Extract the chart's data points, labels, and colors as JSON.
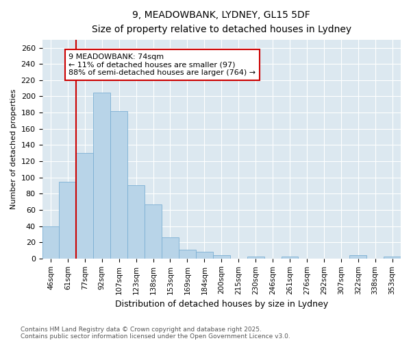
{
  "title1": "9, MEADOWBANK, LYDNEY, GL15 5DF",
  "title2": "Size of property relative to detached houses in Lydney",
  "xlabel": "Distribution of detached houses by size in Lydney",
  "ylabel": "Number of detached properties",
  "categories": [
    "46sqm",
    "61sqm",
    "77sqm",
    "92sqm",
    "107sqm",
    "123sqm",
    "138sqm",
    "153sqm",
    "169sqm",
    "184sqm",
    "200sqm",
    "215sqm",
    "230sqm",
    "246sqm",
    "261sqm",
    "276sqm",
    "292sqm",
    "307sqm",
    "322sqm",
    "338sqm",
    "353sqm"
  ],
  "values": [
    40,
    95,
    130,
    205,
    182,
    90,
    67,
    26,
    11,
    8,
    4,
    0,
    2,
    0,
    2,
    0,
    0,
    0,
    4,
    0,
    2
  ],
  "bar_color": "#b8d4e8",
  "bar_edge_color": "#7bafd4",
  "bg_color": "#dce8f0",
  "grid_color": "#ffffff",
  "annotation_text": "9 MEADOWBANK: 74sqm\n← 11% of detached houses are smaller (97)\n88% of semi-detached houses are larger (764) →",
  "red_line_x": 2.0,
  "annotation_box_color": "#ffffff",
  "annotation_border_color": "#cc0000",
  "vline_color": "#cc0000",
  "ylim": [
    0,
    270
  ],
  "yticks": [
    0,
    20,
    40,
    60,
    80,
    100,
    120,
    140,
    160,
    180,
    200,
    220,
    240,
    260
  ],
  "footer1": "Contains HM Land Registry data © Crown copyright and database right 2025.",
  "footer2": "Contains public sector information licensed under the Open Government Licence v3.0."
}
